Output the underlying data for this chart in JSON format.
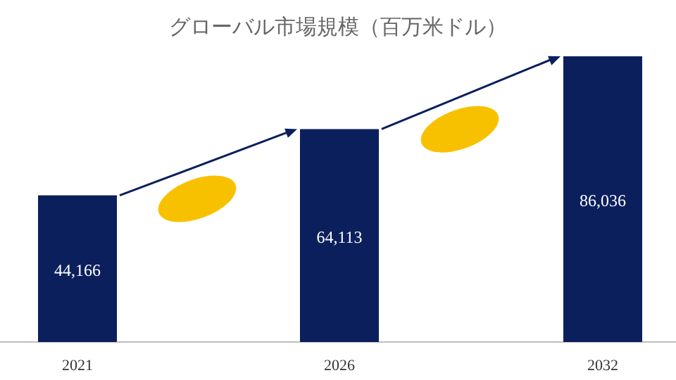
{
  "chart_data": {
    "type": "bar",
    "title": "グローバル市場規模（百万米ドル）",
    "categories": [
      "2021",
      "2026",
      "2032"
    ],
    "values": [
      44166,
      64113,
      86036
    ],
    "color": "#0b1f5c",
    "value_labels": [
      "44,166",
      "64,113",
      "86,036"
    ]
  }
}
